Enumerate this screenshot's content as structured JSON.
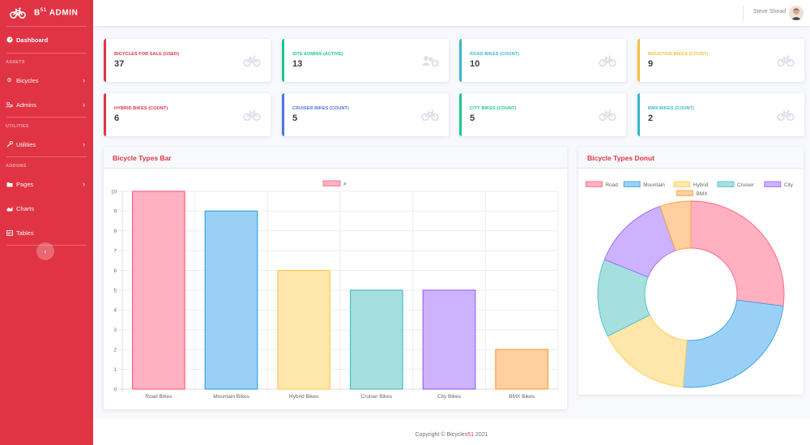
{
  "brand": {
    "name": "B",
    "sup": "51",
    "suffix": " ADMIN"
  },
  "sidebar": {
    "dashboard": "Dashboard",
    "headings": {
      "assets": "ASSETS",
      "utilities": "UTILITIES",
      "addons": "ADDONS"
    },
    "items": {
      "bicycles": "Bicycles",
      "admins": "Admins",
      "utilities": "Utilities",
      "pages": "Pages",
      "charts": "Charts",
      "tables": "Tables"
    },
    "toggle": "‹"
  },
  "topbar": {
    "user": "Steve Shead"
  },
  "stats": [
    {
      "label": "BICYCLES FOR SALE (USED)",
      "value": "37",
      "color": "#e03444"
    },
    {
      "label": "SITE ADMINS (ACTIVE)",
      "value": "13",
      "color": "#1cc88a"
    },
    {
      "label": "ROAD BIKES (COUNT)",
      "value": "10",
      "color": "#36b9cc"
    },
    {
      "label": "MOUNTAIN BIKES (COUNT)",
      "value": "9",
      "color": "#f6c23e"
    },
    {
      "label": "HYBRID BIKES (COUNT)",
      "value": "6",
      "color": "#e03444"
    },
    {
      "label": "CRUISER BIKES (COUNT)",
      "value": "5",
      "color": "#4e73df"
    },
    {
      "label": "CITY BIKES (COUNT)",
      "value": "5",
      "color": "#1cc88a"
    },
    {
      "label": "BMX BIKES (COUNT)",
      "value": "2",
      "color": "#36b9cc"
    }
  ],
  "bar_card": {
    "title": "Bicycle Types Bar"
  },
  "donut_card": {
    "title": "Bicycle Types Donut"
  },
  "footer": {
    "prefix": "Copyright © Bicycles",
    "accent": "51",
    "suffix": " 2021"
  },
  "chart_data": [
    {
      "type": "bar",
      "categories": [
        "Road Bikes",
        "Mountain Bikes",
        "Hybrid Bikes",
        "Cruiser Bikes",
        "City Bikes",
        "BMX Bikes"
      ],
      "series": [
        {
          "name": "#",
          "values": [
            10,
            9,
            6,
            5,
            5,
            2
          ]
        }
      ],
      "ylim": [
        0,
        10
      ],
      "yticks": [
        0,
        1,
        2,
        3,
        4,
        5,
        6,
        7,
        8,
        9,
        10
      ],
      "colors": [
        "#ffb1c1",
        "#9ad0f5",
        "#ffe6aa",
        "#a5dfdf",
        "#ccb2ff",
        "#ffcf9f"
      ],
      "borders": [
        "#ff6384",
        "#36a2eb",
        "#ffcd56",
        "#4bc0c0",
        "#9966ff",
        "#ff9f40"
      ],
      "legend": "top",
      "grid": true
    },
    {
      "type": "pie",
      "variant": "donut",
      "labels": [
        "Road",
        "Mountain",
        "Hybrid",
        "Cruiser",
        "City",
        "BMX"
      ],
      "values": [
        10,
        9,
        6,
        5,
        5,
        2
      ],
      "colors": [
        "#ffb1c1",
        "#9ad0f5",
        "#ffe6aa",
        "#a5dfdf",
        "#ccb2ff",
        "#ffcf9f"
      ],
      "borders": [
        "#ff6384",
        "#36a2eb",
        "#ffcd56",
        "#4bc0c0",
        "#9966ff",
        "#ff9f40"
      ],
      "legend": "top"
    }
  ]
}
